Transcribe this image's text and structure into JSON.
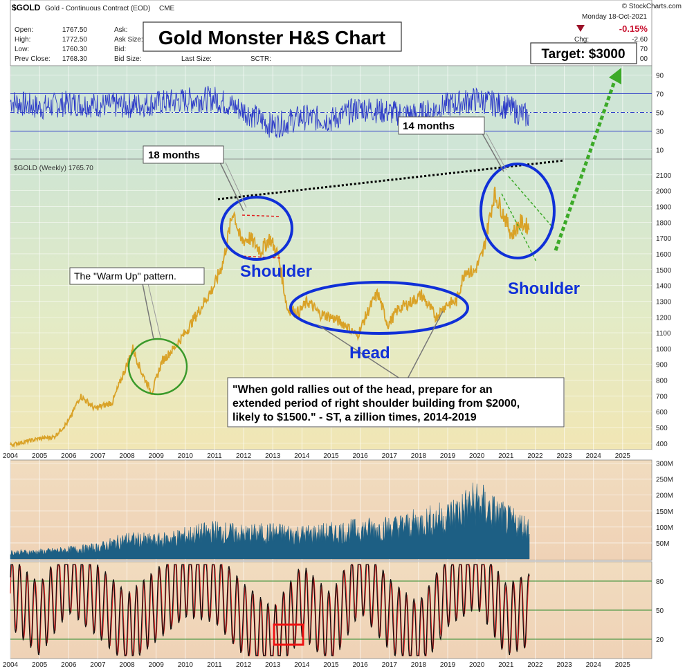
{
  "header": {
    "symbol": "$GOLD",
    "name": "Gold - Continuous Contract (EOD)",
    "exchange": "CME",
    "source": "© StockCharts.com",
    "date": "Monday 18-Oct-2021",
    "change_pct": "-0.15%",
    "chg_label": "Chg:",
    "chg_value": "-2.60",
    "quotes": [
      {
        "label": "Open:",
        "value": "1767.50"
      },
      {
        "label": "High:",
        "value": "1772.50"
      },
      {
        "label": "Low:",
        "value": "1760.30"
      },
      {
        "label": "Prev Close:",
        "value": "1768.30"
      }
    ],
    "quote_labels2": [
      "Ask:",
      "Ask Size:",
      "Bid:",
      "Bid Size:"
    ],
    "last_size_label": "Last Size:",
    "sctr_label": "SCTR:",
    "partial_values": [
      "70",
      "00"
    ]
  },
  "title": "Gold Monster H&S Chart",
  "target_label": "Target: $3000",
  "price_legend": "$GOLD (Weekly) 1765.70",
  "annotations": {
    "months18": "18 months",
    "months14": "14 months",
    "warmup": "The \"Warm Up\" pattern.",
    "shoulder_left": "Shoulder",
    "shoulder_right": "Shoulder",
    "head": "Head",
    "quote_lines": [
      "\"When gold rallies out of the head, prepare for an",
      "extended period of right shoulder building from $2000,",
      "likely to $1500.\" - ST, a zillion times, 2014-2019"
    ]
  },
  "colors": {
    "price": "#d9a227",
    "rsi": "#2b39c8",
    "volume": "#1d5f84",
    "stoch_k": "#111111",
    "stoch_d": "#dd2222",
    "ellipse_blue": "#1030d8",
    "ellipse_green": "#3a9a2a",
    "target_arrow": "#3caa28",
    "highlight": "#ee1111"
  },
  "chart_data": [
    {
      "type": "line",
      "panel": "rsi",
      "ylim": [
        0,
        100
      ],
      "ticks": [
        "90",
        "70",
        "50",
        "30",
        "10"
      ],
      "reference_lines": [
        70,
        50,
        30
      ],
      "x": [
        2004,
        2005,
        2006,
        2007,
        2008,
        2009,
        2010,
        2011,
        2012,
        2013,
        2014,
        2015,
        2016,
        2017,
        2018,
        2019,
        2020,
        2021,
        2021.8
      ],
      "values": [
        62,
        55,
        60,
        58,
        57,
        60,
        63,
        65,
        52,
        35,
        45,
        42,
        55,
        50,
        47,
        58,
        64,
        56,
        45
      ]
    },
    {
      "type": "line",
      "panel": "price",
      "series_label": "$GOLD (Weekly) 1765.70",
      "ylim": [
        360,
        2200
      ],
      "ticks": [
        "2100",
        "2000",
        "1900",
        "1800",
        "1700",
        "1600",
        "1500",
        "1400",
        "1300",
        "1200",
        "1100",
        "1000",
        "900",
        "800",
        "700",
        "600",
        "500",
        "400"
      ],
      "x": [
        2004.0,
        2004.5,
        2005.0,
        2005.5,
        2006.0,
        2006.4,
        2006.9,
        2007.5,
        2008.0,
        2008.2,
        2008.5,
        2008.85,
        2009.2,
        2009.6,
        2010.0,
        2010.5,
        2011.0,
        2011.3,
        2011.65,
        2011.9,
        2012.2,
        2012.6,
        2012.9,
        2013.2,
        2013.5,
        2013.9,
        2014.2,
        2014.6,
        2015.0,
        2015.5,
        2015.9,
        2016.3,
        2016.6,
        2016.95,
        2017.3,
        2017.7,
        2018.1,
        2018.6,
        2018.95,
        2019.3,
        2019.6,
        2019.9,
        2020.2,
        2020.6,
        2020.85,
        2021.2,
        2021.5,
        2021.8
      ],
      "values": [
        390,
        410,
        430,
        440,
        540,
        700,
        620,
        660,
        900,
        1000,
        850,
        720,
        920,
        1000,
        1100,
        1250,
        1400,
        1550,
        1880,
        1680,
        1700,
        1620,
        1700,
        1580,
        1250,
        1230,
        1300,
        1220,
        1200,
        1150,
        1080,
        1250,
        1350,
        1150,
        1250,
        1290,
        1340,
        1200,
        1280,
        1300,
        1500,
        1480,
        1600,
        1980,
        1880,
        1720,
        1800,
        1766
      ]
    },
    {
      "type": "bar",
      "panel": "volume",
      "ticks": [
        "300M",
        "250M",
        "200M",
        "150M",
        "100M",
        "50M"
      ],
      "ylim": [
        0,
        310
      ],
      "x": [
        2004,
        2005,
        2006,
        2007,
        2008,
        2009,
        2010,
        2011,
        2012,
        2013,
        2014,
        2015,
        2016,
        2017,
        2018,
        2019,
        2020,
        2021,
        2021.8
      ],
      "values": [
        20,
        22,
        28,
        35,
        60,
        55,
        70,
        85,
        75,
        80,
        75,
        80,
        90,
        95,
        110,
        130,
        175,
        120,
        95
      ]
    },
    {
      "type": "line",
      "panel": "stochastic",
      "ticks": [
        "80",
        "50",
        "20"
      ],
      "reference_lines": [
        80,
        50,
        20
      ],
      "ylim": [
        0,
        100
      ],
      "x": [
        2004,
        2005,
        2006,
        2007,
        2008,
        2009,
        2010,
        2011,
        2012,
        2013,
        2014,
        2015,
        2016,
        2017,
        2018,
        2019,
        2020,
        2021,
        2021.8
      ],
      "values": [
        70,
        40,
        85,
        60,
        30,
        55,
        80,
        75,
        40,
        15,
        60,
        30,
        85,
        45,
        20,
        70,
        90,
        40,
        50
      ]
    }
  ],
  "x_axis_labels": [
    "2004",
    "2005",
    "2006",
    "2007",
    "2008",
    "2009",
    "2010",
    "2011",
    "2012",
    "2013",
    "2014",
    "2015",
    "2016",
    "2017",
    "2018",
    "2019",
    "2020",
    "2021",
    "2022",
    "2023",
    "2024",
    "2025"
  ]
}
